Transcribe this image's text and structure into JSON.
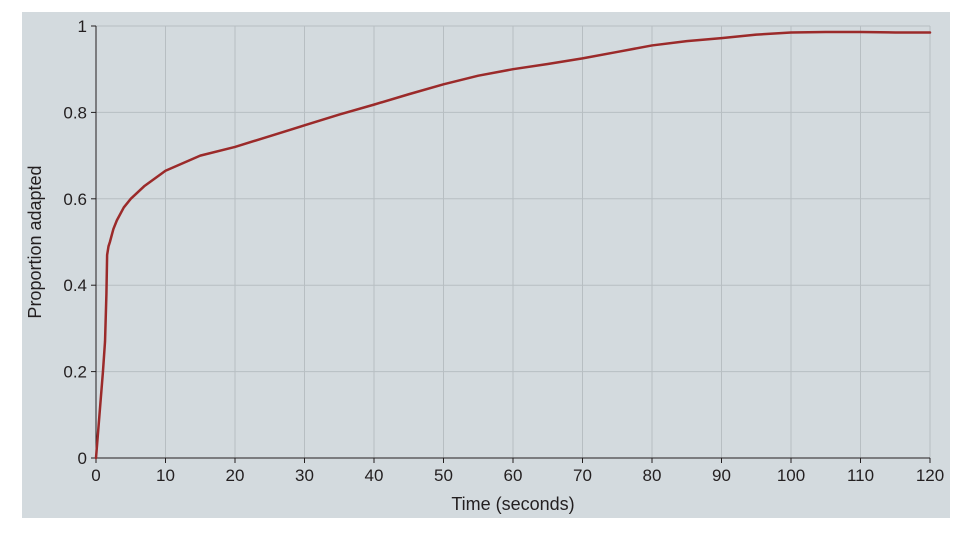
{
  "chart_data": {
    "type": "line",
    "title": "",
    "xlabel": "Time (seconds)",
    "ylabel": "Proportion adapted",
    "xlim": [
      0,
      120
    ],
    "ylim": [
      0,
      1
    ],
    "xticks": [
      0,
      10,
      20,
      30,
      40,
      50,
      60,
      70,
      80,
      90,
      100,
      110,
      120
    ],
    "yticks": [
      0,
      0.2,
      0.4,
      0.6,
      0.8,
      1
    ],
    "ytick_labels": [
      "0",
      "0.2",
      "0.4",
      "0.6",
      "0.8",
      "1"
    ],
    "grid": true,
    "legend": "none",
    "colors": {
      "panel_background": "#d3dade",
      "grid": "#b7bec2",
      "axis": "#231f20",
      "series": "#9b2a2a"
    },
    "series": [
      {
        "x": [
          0,
          0.5,
          1,
          1.3,
          1.5,
          1.6,
          1.8,
          2,
          2.5,
          3,
          4,
          5,
          7,
          10,
          15,
          20,
          25,
          30,
          35,
          40,
          45,
          50,
          55,
          60,
          65,
          70,
          75,
          80,
          85,
          90,
          95,
          100,
          105,
          110,
          115,
          120
        ],
        "y": [
          0,
          0.1,
          0.2,
          0.27,
          0.38,
          0.47,
          0.49,
          0.5,
          0.53,
          0.55,
          0.58,
          0.6,
          0.63,
          0.665,
          0.7,
          0.72,
          0.745,
          0.77,
          0.795,
          0.818,
          0.842,
          0.865,
          0.885,
          0.9,
          0.912,
          0.925,
          0.94,
          0.955,
          0.965,
          0.972,
          0.98,
          0.985,
          0.986,
          0.986,
          0.985,
          0.985
        ]
      }
    ]
  }
}
